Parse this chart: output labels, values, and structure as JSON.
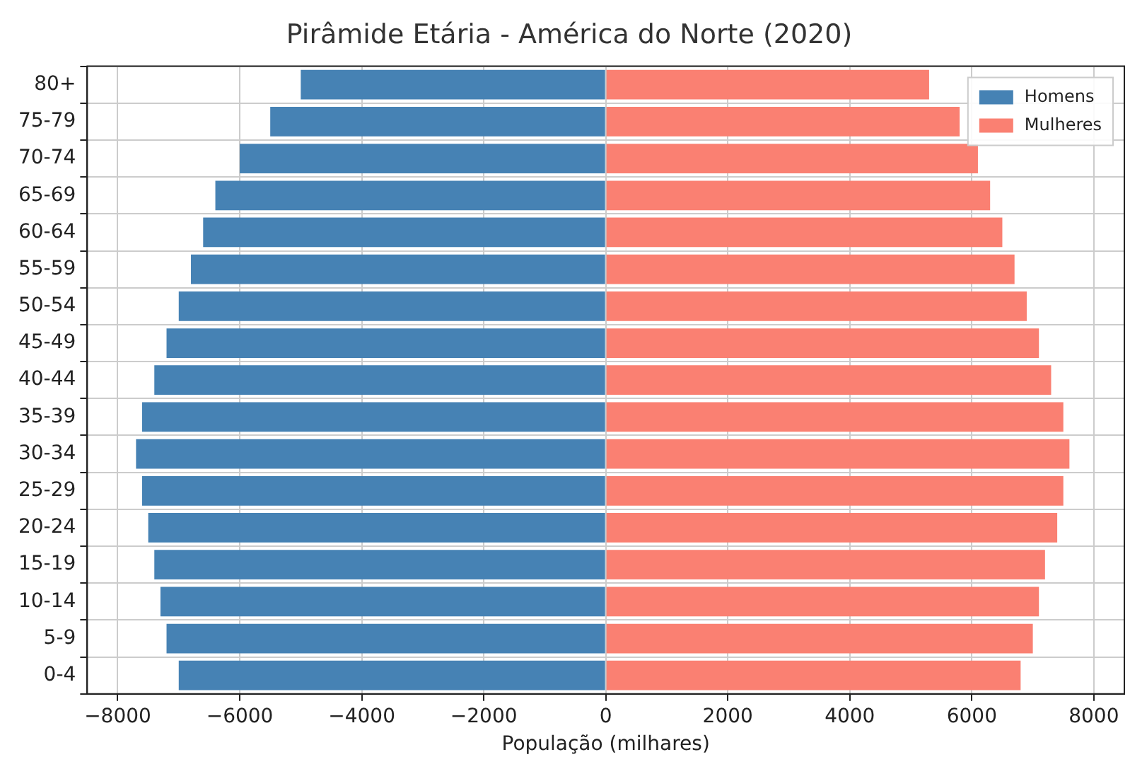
{
  "chart_data": {
    "type": "bar",
    "orientation": "horizontal",
    "stacked": true,
    "title": "Pirâmide Etária - América do Norte (2020)",
    "xlabel": "População (milhares)",
    "categories": [
      "80+",
      "75-79",
      "70-74",
      "65-69",
      "60-64",
      "55-59",
      "50-54",
      "45-49",
      "40-44",
      "35-39",
      "30-34",
      "25-29",
      "20-24",
      "15-19",
      "10-14",
      "5-9",
      "0-4"
    ],
    "series": [
      {
        "name": "Homens",
        "color": "#4682b4",
        "values": [
          -5000,
          -5500,
          -6000,
          -6400,
          -6600,
          -6800,
          -7000,
          -7200,
          -7400,
          -7600,
          -7700,
          -7600,
          -7500,
          -7400,
          -7300,
          -7200,
          -7000
        ]
      },
      {
        "name": "Mulheres",
        "color": "#fa8072",
        "values": [
          5300,
          5800,
          6100,
          6300,
          6500,
          6700,
          6900,
          7100,
          7300,
          7500,
          7600,
          7500,
          7400,
          7200,
          7100,
          7000,
          6800
        ]
      }
    ],
    "xlim": [
      -8500,
      8500
    ],
    "xticks": [
      {
        "value": -8000,
        "label": "−8000"
      },
      {
        "value": -6000,
        "label": "−6000"
      },
      {
        "value": -4000,
        "label": "−4000"
      },
      {
        "value": -2000,
        "label": "−2000"
      },
      0,
      2000,
      4000,
      6000,
      8000
    ],
    "grid": true,
    "legend": "top right"
  }
}
